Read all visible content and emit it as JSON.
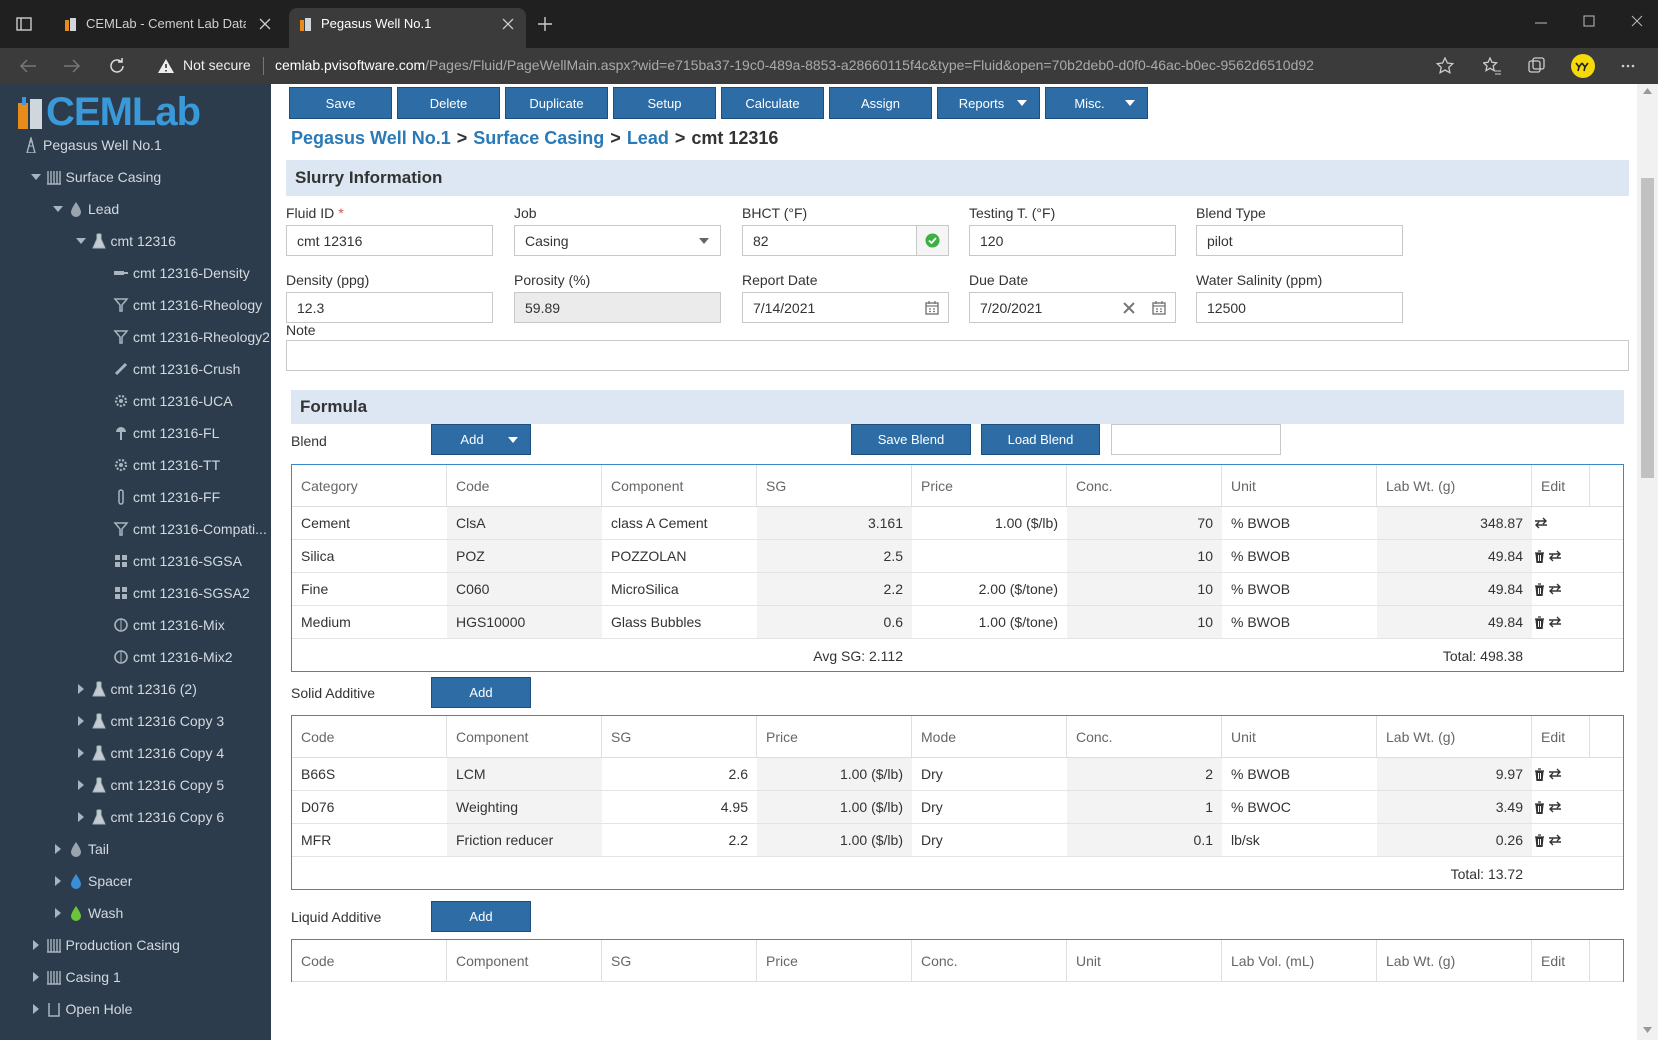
{
  "browser": {
    "tabs": [
      {
        "title": "CEMLab - Cement Lab Data Man",
        "active": false
      },
      {
        "title": "Pegasus Well No.1",
        "active": true
      }
    ],
    "security": "Not secure",
    "url_host": "cemlab.pvisoftware.com",
    "url_path": "/Pages/Fluid/PageWellMain.aspx?wid=e715ba37-19c0-489a-8853-a28660115f4c&type=Fluid&open=70b2deb0-d0f0-46ac-b0ec-9562d6510d92"
  },
  "sidebar": {
    "logo": "CEMLab",
    "tree": [
      {
        "label": "Pegasus Well No.1",
        "icon": "well",
        "children": [
          {
            "label": "Surface Casing",
            "icon": "casing",
            "expanded": true,
            "children": [
              {
                "label": "Lead",
                "icon": "drop-gray",
                "expanded": true,
                "children": [
                  {
                    "label": "cmt 12316",
                    "icon": "flask",
                    "expanded": true,
                    "children": [
                      {
                        "label": "cmt 12316-Density",
                        "icon": "density"
                      },
                      {
                        "label": "cmt 12316-Rheology",
                        "icon": "funnel"
                      },
                      {
                        "label": "cmt 12316-Rheology2",
                        "icon": "funnel"
                      },
                      {
                        "label": "cmt 12316-Crush",
                        "icon": "crush"
                      },
                      {
                        "label": "cmt 12316-UCA",
                        "icon": "gear"
                      },
                      {
                        "label": "cmt 12316-FL",
                        "icon": "fl"
                      },
                      {
                        "label": "cmt 12316-TT",
                        "icon": "gear"
                      },
                      {
                        "label": "cmt 12316-FF",
                        "icon": "tube"
                      },
                      {
                        "label": "cmt 12316-Compati...",
                        "icon": "funnel"
                      },
                      {
                        "label": "cmt 12316-SGSA",
                        "icon": "grid"
                      },
                      {
                        "label": "cmt 12316-SGSA2",
                        "icon": "grid"
                      },
                      {
                        "label": "cmt 12316-Mix",
                        "icon": "mix"
                      },
                      {
                        "label": "cmt 12316-Mix2",
                        "icon": "mix"
                      }
                    ]
                  },
                  {
                    "label": "cmt 12316 (2)",
                    "icon": "flask",
                    "expanded": false
                  },
                  {
                    "label": "cmt 12316 Copy 3",
                    "icon": "flask",
                    "expanded": false
                  },
                  {
                    "label": "cmt 12316 Copy 4",
                    "icon": "flask",
                    "expanded": false
                  },
                  {
                    "label": "cmt 12316 Copy 5",
                    "icon": "flask",
                    "expanded": false
                  },
                  {
                    "label": "cmt 12316 Copy 6",
                    "icon": "flask",
                    "expanded": false
                  }
                ]
              },
              {
                "label": "Tail",
                "icon": "drop-gray",
                "expanded": false
              },
              {
                "label": "Spacer",
                "icon": "drop-blue",
                "expanded": false
              },
              {
                "label": "Wash",
                "icon": "drop-green",
                "expanded": false
              }
            ]
          },
          {
            "label": "Production Casing",
            "icon": "casing",
            "expanded": false
          },
          {
            "label": "Casing 1",
            "icon": "casing",
            "expanded": false
          },
          {
            "label": "Open Hole",
            "icon": "hole",
            "expanded": false
          }
        ]
      }
    ]
  },
  "toolbar": [
    {
      "label": "Save"
    },
    {
      "label": "Delete"
    },
    {
      "label": "Duplicate"
    },
    {
      "label": "Setup"
    },
    {
      "label": "Calculate"
    },
    {
      "label": "Assign"
    },
    {
      "label": "Reports",
      "menu": true
    },
    {
      "label": "Misc.",
      "menu": true
    }
  ],
  "breadcrumb": {
    "items": [
      "Pegasus Well No.1",
      "Surface Casing",
      "Lead",
      "cmt 12316"
    ],
    "separator": ">"
  },
  "slurry": {
    "title": "Slurry Information",
    "required_mark": "*",
    "fields": [
      {
        "label": "Fluid ID",
        "value": "cmt 12316",
        "required": true,
        "kind": "text"
      },
      {
        "label": "Job",
        "value": "Casing",
        "kind": "select"
      },
      {
        "label": "BHCT (°F)",
        "value": "82",
        "kind": "valid"
      },
      {
        "label": "Testing T. (°F)",
        "value": "120",
        "kind": "text"
      },
      {
        "label": "Blend Type",
        "value": "pilot",
        "kind": "text"
      },
      {
        "label": "Density (ppg)",
        "value": "12.3",
        "kind": "text"
      },
      {
        "label": "Porosity (%)",
        "value": "59.89",
        "kind": "readonly"
      },
      {
        "label": "Report Date",
        "value": "7/14/2021",
        "kind": "date"
      },
      {
        "label": "Due Date",
        "value": "7/20/2021",
        "kind": "date-clear"
      },
      {
        "label": "Water Salinity (ppm)",
        "value": "12500",
        "kind": "text"
      }
    ],
    "note_label": "Note"
  },
  "formula": {
    "title": "Formula",
    "blend_label": "Blend",
    "add_button": "Add",
    "save_button": "Save Blend",
    "load_button": "Load Blend",
    "headers": [
      "Category",
      "Code",
      "Component",
      "SG",
      "Price",
      "Conc.",
      "Unit",
      "Lab Wt. (g)",
      "Edit"
    ],
    "rows": [
      {
        "cells": [
          "Cement",
          "ClsA",
          "class A Cement",
          "3.161",
          "1.00 ($/lb)",
          "70",
          "% BWOB",
          "348.87"
        ],
        "edit": [
          "swap"
        ]
      },
      {
        "cells": [
          "Silica",
          "POZ",
          "POZZOLAN",
          "2.5",
          null,
          "10",
          "% BWOB",
          "49.84"
        ],
        "edit": [
          "delete",
          "swap"
        ]
      },
      {
        "cells": [
          "Fine",
          "C060",
          "MicroSilica",
          "2.2",
          "2.00 ($/tone)",
          "10",
          "% BWOB",
          "49.84"
        ],
        "edit": [
          "delete",
          "swap"
        ]
      },
      {
        "cells": [
          "Medium",
          "HGS10000",
          "Glass Bubbles",
          "0.6",
          "1.00 ($/tone)",
          "10",
          "% BWOB",
          "49.84"
        ],
        "edit": [
          "delete",
          "swap"
        ]
      }
    ],
    "footer": [
      null,
      null,
      null,
      "Avg SG: 2.112",
      null,
      null,
      null,
      "Total: 498.38",
      null
    ]
  },
  "solid": {
    "label": "Solid Additive",
    "add_button": "Add",
    "headers": [
      "Code",
      "Component",
      "SG",
      "Price",
      "Mode",
      "Conc.",
      "Unit",
      "Lab Wt. (g)",
      "Edit"
    ],
    "rows": [
      {
        "cells": [
          "B66S",
          "LCM",
          "2.6",
          "1.00 ($/lb)",
          "Dry",
          "2",
          "% BWOB",
          "9.97"
        ],
        "edit": [
          "delete",
          "swap"
        ]
      },
      {
        "cells": [
          "D076",
          "Weighting",
          "4.95",
          "1.00 ($/lb)",
          "Dry",
          "1",
          "% BWOC",
          "3.49"
        ],
        "edit": [
          "delete",
          "swap"
        ]
      },
      {
        "cells": [
          "MFR",
          "Friction reducer",
          "2.2",
          "1.00 ($/lb)",
          "Dry",
          "0.1",
          "lb/sk",
          "0.26"
        ],
        "edit": [
          "delete",
          "swap"
        ]
      }
    ],
    "footer": [
      null,
      null,
      null,
      null,
      null,
      null,
      null,
      "Total: 13.72",
      null
    ]
  },
  "liquid": {
    "label": "Liquid Additive",
    "add_button": "Add",
    "headers": [
      "Code",
      "Component",
      "SG",
      "Price",
      "Conc.",
      "Unit",
      "Lab Vol. (mL)",
      "Lab Wt. (g)",
      "Edit"
    ],
    "rows": []
  }
}
